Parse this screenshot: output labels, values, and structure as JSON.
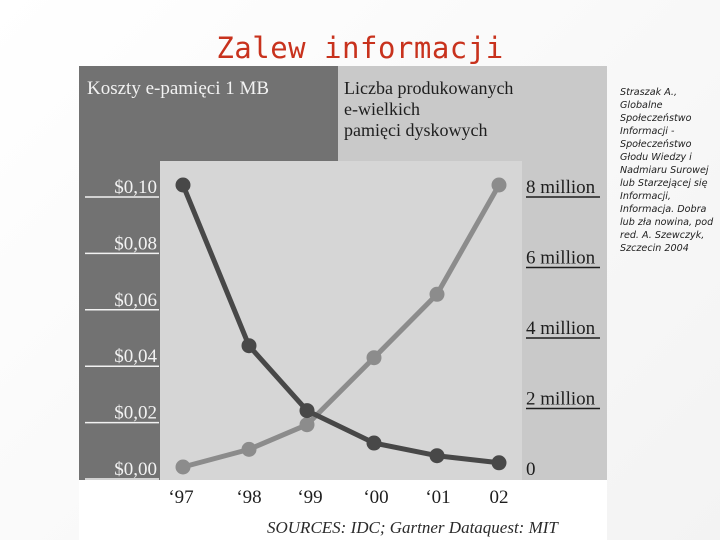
{
  "slide": {
    "title": "Zalew informacji",
    "note": "Straszak A., Globalne Społeczeństwo Informacji - Społeczeństwo Głodu Wiedzy i Nadmiaru Surowej lub Starzejącej się Informacji, Informacja. Dobra lub zła nowina, pod red. A. Szewczyk, Szczecin 2004"
  },
  "colors": {
    "left_panel": "#727272",
    "right_panel": "#c9c9c9",
    "plot_bg": "#d6d6d6",
    "cost_series": "#484848",
    "drives_series": "#8c8c8c",
    "panel_text": "#f2f2f2",
    "axis_text": "#1e1e1e"
  },
  "chart_data": {
    "type": "line",
    "title_left": "Koszty e-pamięci 1 MB",
    "title_right_lines": [
      "Liczba produkowanych",
      "e-wielkich",
      "pamięci dyskowych"
    ],
    "categories": [
      "‘97",
      "‘98",
      "‘99",
      "‘00",
      "‘01",
      "02"
    ],
    "left_axis": {
      "ticks": [
        "$0,10",
        "$0,08",
        "$0,06",
        "$0,04",
        "$0,02",
        "$0,00"
      ],
      "range": [
        0,
        0.1
      ]
    },
    "right_axis": {
      "ticks": [
        "8 million",
        "6 million",
        "4 million",
        "2 million",
        "0"
      ],
      "range": [
        0,
        8000000
      ]
    },
    "series": [
      {
        "axis": "left",
        "values": [
          0.1,
          0.043,
          0.02,
          0.0085,
          0.004,
          0.0015
        ]
      },
      {
        "axis": "right",
        "values": [
          0,
          500000,
          1200000,
          3100000,
          4900000,
          8000000
        ]
      }
    ],
    "source": "SOURCES: IDC; Gartner Dataquest: MIT"
  }
}
